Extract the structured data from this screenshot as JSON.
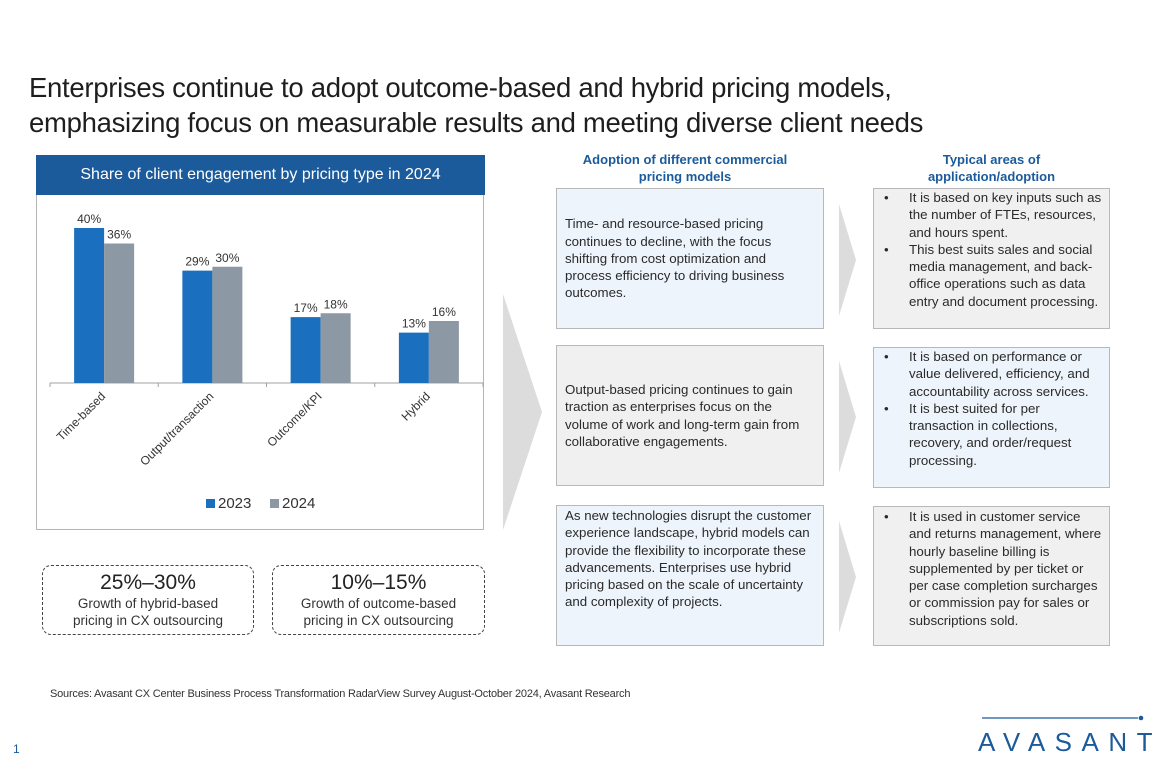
{
  "title": {
    "line1": "Enterprises continue to adopt outcome-based and hybrid pricing models,",
    "line2": "emphasizing focus on measurable results and meeting diverse client needs"
  },
  "chart_data": {
    "type": "bar",
    "title": "Share of client engagement by pricing type in 2024",
    "categories": [
      "Time-based",
      "Output/transaction",
      "Outcome/KPI",
      "Hybrid"
    ],
    "series": [
      {
        "name": "2023",
        "values": [
          40,
          29,
          17,
          13
        ],
        "labels": [
          "40%",
          "29%",
          "17%",
          "13%"
        ],
        "color": "#1a6fbf"
      },
      {
        "name": "2024",
        "values": [
          36,
          30,
          18,
          16
        ],
        "labels": [
          "36%",
          "30%",
          "18%",
          "16%"
        ],
        "color": "#8c98a3"
      }
    ],
    "xlabel": "",
    "ylabel": "",
    "ylim": [
      0,
      40
    ],
    "grid": false,
    "legend": "bottom",
    "unit": "%"
  },
  "callouts": [
    {
      "value": "25%–30%",
      "line1": "Growth of hybrid-based",
      "line2": "pricing in CX outsourcing"
    },
    {
      "value": "10%–15%",
      "line1": "Growth of outcome-based",
      "line2": "pricing in CX outsourcing"
    }
  ],
  "columns": {
    "middle_heading_line1": "Adoption of different commercial",
    "middle_heading_line2": "pricing models",
    "right_heading_line1": "Typical areas of",
    "right_heading_line2": "application/adoption"
  },
  "rows": [
    {
      "model": "Time- and resource-based pricing continues to decline, with the focus shifting from cost optimization and process efficiency to driving business outcomes.",
      "bullets": [
        "It is based on key inputs such as the number of FTEs, resources, and hours spent.",
        "This best suits sales and social media management, and back-office operations such as data entry and document processing."
      ]
    },
    {
      "model": "Output-based pricing continues to gain traction as enterprises focus on the volume of work and long-term gain from collaborative engagements.",
      "bullets": [
        "It is based on performance or value delivered, efficiency, and accountability across services.",
        "It is best suited for per transaction in collections, recovery, and order/request processing."
      ]
    },
    {
      "model": "As new technologies disrupt the customer experience landscape, hybrid models can provide the flexibility to incorporate these advancements. Enterprises use hybrid pricing based on the scale of uncertainty and complexity of projects.",
      "bullets": [
        "It is used in customer service and returns management, where hourly baseline billing is supplemented by per ticket or per case completion surcharges or commission pay for sales or subscriptions sold."
      ]
    }
  ],
  "bullet_glyph": "•",
  "footer": {
    "sources": "Sources: Avasant CX Center Business Process Transformation RadarView Survey August-October 2024, Avasant Research",
    "page_number": "1",
    "logo_text": "AVASANT",
    "logo_icon": "avasant-logo"
  },
  "colors": {
    "brand_blue": "#1b5a9b",
    "bar_2023": "#1a6fbf",
    "bar_2024": "#8c98a3",
    "chevron_gray": "#d9d9d9",
    "box_blue": "#eef4fb",
    "box_gray": "#f0f0f0"
  }
}
